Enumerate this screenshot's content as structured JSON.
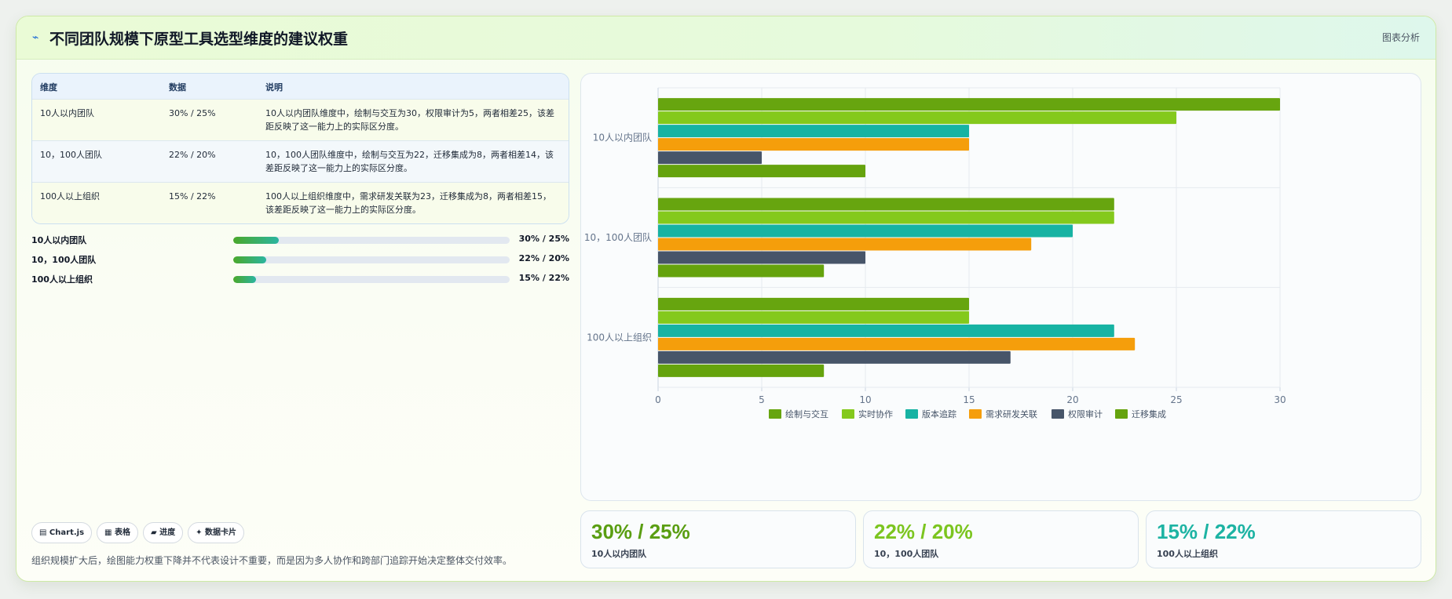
{
  "header": {
    "title": "不同团队规模下原型工具选型维度的建议权重",
    "analysis_button": "图表分析",
    "title_icon": "trend-icon"
  },
  "table": {
    "columns": [
      "维度",
      "数据",
      "说明"
    ],
    "rows": [
      {
        "dimension": "10人以内团队",
        "data": "30% / 25%",
        "desc": "10人以内团队维度中，绘制与交互为30，权限审计为5，两者相差25，该差距反映了这一能力上的实际区分度。"
      },
      {
        "dimension": "10，100人团队",
        "data": "22% / 20%",
        "desc": "10，100人团队维度中，绘制与交互为22，迁移集成为8，两者相差14，该差距反映了这一能力上的实际区分度。"
      },
      {
        "dimension": "100人以上组织",
        "data": "15% / 22%",
        "desc": "100人以上组织维度中，需求研发关联为23，迁移集成为8，两者相差15，该差距反映了这一能力上的实际区分度。"
      }
    ]
  },
  "progress": [
    {
      "label": "10人以内团队",
      "value": "30% / 25%",
      "fill": 0.165
    },
    {
      "label": "10，100人团队",
      "value": "22% / 20%",
      "fill": 0.12
    },
    {
      "label": "100人以上组织",
      "value": "15% / 22%",
      "fill": 0.082
    }
  ],
  "chips": [
    "▤ Chart.js",
    "▦ 表格",
    "▰ 进度",
    "✦ 数据卡片"
  ],
  "footnote": "组织规模扩大后，绘图能力权重下降并不代表设计不重要，而是因为多人协作和跨部门追踪开始决定整体交付效率。",
  "kpis": [
    {
      "value": "30% / 25%",
      "label": "10人以内团队",
      "color": "#5a9e12"
    },
    {
      "value": "22% / 20%",
      "label": "10，100人团队",
      "color": "#7cc520"
    },
    {
      "value": "15% / 22%",
      "label": "100人以上组织",
      "color": "#1db3a3"
    }
  ],
  "chart_data": {
    "type": "bar",
    "orientation": "horizontal",
    "categories": [
      "10人以内团队",
      "10，100人团队",
      "100人以上组织"
    ],
    "series": [
      {
        "name": "绘制与交互",
        "color": "#67a50f",
        "values": [
          30,
          22,
          15
        ]
      },
      {
        "name": "实时协作",
        "color": "#84c91c",
        "values": [
          25,
          22,
          15
        ]
      },
      {
        "name": "版本追踪",
        "color": "#17b3a3",
        "values": [
          15,
          20,
          22
        ]
      },
      {
        "name": "需求研发关联",
        "color": "#f59e0b",
        "values": [
          15,
          18,
          23
        ]
      },
      {
        "name": "权限审计",
        "color": "#475569",
        "values": [
          5,
          10,
          17
        ]
      },
      {
        "name": "迁移集成",
        "color": "#65a30d",
        "values": [
          10,
          8,
          8
        ]
      }
    ],
    "xlim": [
      0,
      30
    ],
    "xticks": [
      0,
      5,
      10,
      15,
      20,
      25,
      30
    ],
    "grid": true,
    "legend": "bottom"
  }
}
